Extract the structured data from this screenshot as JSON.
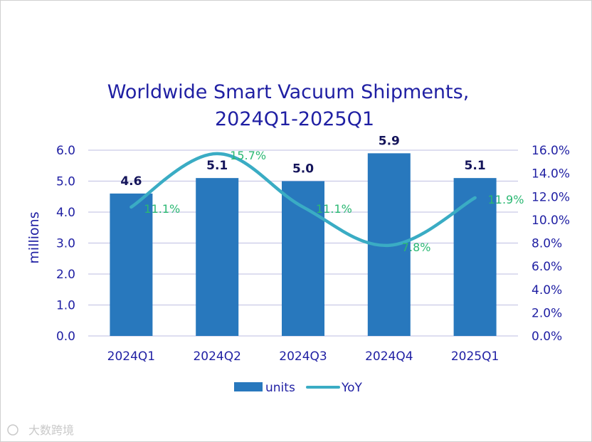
{
  "chart_data": {
    "type": "bar",
    "title_lines": [
      "Worldwide Smart Vacuum Shipments,",
      "2024Q1-2025Q1"
    ],
    "ylabel": "millions",
    "categories": [
      "2024Q1",
      "2024Q2",
      "2024Q3",
      "2024Q4",
      "2025Q1"
    ],
    "series": [
      {
        "name": "units",
        "kind": "bar",
        "axis": "left",
        "color": "#2878bd",
        "values": [
          4.6,
          5.1,
          5.0,
          5.9,
          5.1
        ],
        "labels": [
          "4.6",
          "5.1",
          "5.0",
          "5.9",
          "5.1"
        ]
      },
      {
        "name": "YoY",
        "kind": "line",
        "axis": "right",
        "color": "#3aacc4",
        "values": [
          11.1,
          15.7,
          11.1,
          7.8,
          11.9
        ],
        "labels": [
          "11.1%",
          "15.7%",
          "11.1%",
          "7.8%",
          "11.9%"
        ]
      }
    ],
    "y_left": {
      "min": 0,
      "max": 6,
      "ticks": [
        "0.0",
        "1.0",
        "2.0",
        "3.0",
        "4.0",
        "5.0",
        "6.0"
      ]
    },
    "y_right": {
      "min": 0,
      "max": 16,
      "ticks": [
        "0.0%",
        "2.0%",
        "4.0%",
        "6.0%",
        "8.0%",
        "10.0%",
        "12.0%",
        "14.0%",
        "16.0%"
      ]
    },
    "gridlines": true,
    "legend_position": "bottom-center",
    "colors": {
      "text": "#1f1fa3",
      "bar_label": "#14145a",
      "yoy_label": "#2bb873",
      "grid": "#c9c9e6"
    }
  },
  "watermark": "大数跨境"
}
